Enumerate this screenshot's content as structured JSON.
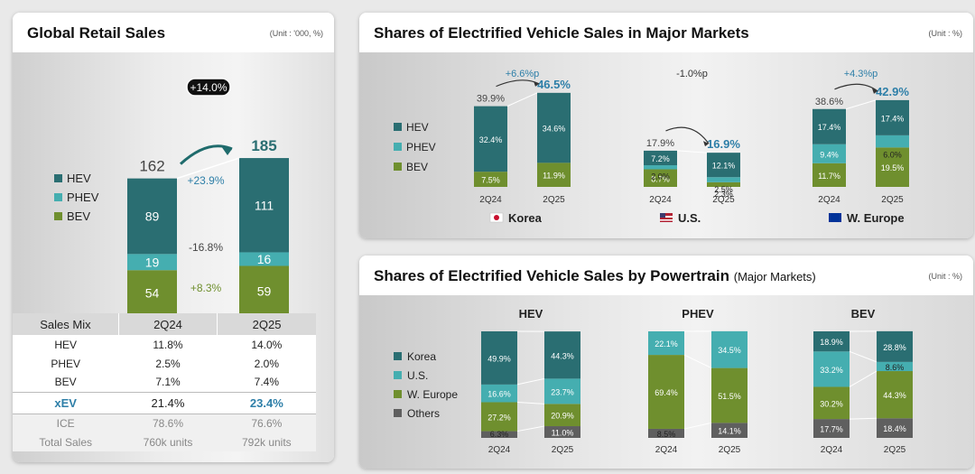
{
  "colors": {
    "hev": "#2a6e72",
    "phev": "#45aeb0",
    "bev": "#6f8f2e",
    "others": "#5f5f5f",
    "accent": "#2e7fa8"
  },
  "left": {
    "title": "Global Retail Sales",
    "unit": "(Unit : '000, %)",
    "badge": "+14.0%",
    "legend": [
      "HEV",
      "PHEV",
      "BEV"
    ],
    "changes": [
      "+23.9%",
      "-16.8%",
      "+8.3%"
    ],
    "table": {
      "headers": [
        "Sales Mix",
        "2Q24",
        "2Q25"
      ],
      "rows": [
        [
          "HEV",
          "11.8%",
          "14.0%"
        ],
        [
          "PHEV",
          "2.5%",
          "2.0%"
        ],
        [
          "BEV",
          "7.1%",
          "7.4%"
        ]
      ],
      "xev": [
        "xEV",
        "21.4%",
        "23.4%"
      ],
      "ice": [
        "ICE",
        "78.6%",
        "76.6%"
      ],
      "total": [
        "Total Sales",
        "760k units",
        "792k units"
      ]
    }
  },
  "top_right": {
    "title": "Shares of Electrified Vehicle Sales in Major Markets",
    "unit": "(Unit : %)"
  },
  "bottom_right": {
    "title": "Shares of Electrified Vehicle Sales by Powertrain",
    "subtitle": "(Major Markets)",
    "unit": "(Unit : %)"
  },
  "chart_data": [
    {
      "type": "bar",
      "stacked": true,
      "categories": [
        "2Q24",
        "2Q25"
      ],
      "series": [
        {
          "name": "BEV",
          "values": [
            54,
            59
          ]
        },
        {
          "name": "PHEV",
          "values": [
            19,
            16
          ]
        },
        {
          "name": "HEV",
          "values": [
            89,
            111
          ]
        }
      ],
      "totals": [
        "162",
        "185"
      ]
    },
    {
      "type": "bar",
      "stacked": true,
      "legend": [
        "HEV",
        "PHEV",
        "BEV"
      ],
      "categories": [
        "2Q24",
        "2Q25"
      ],
      "groups": [
        {
          "name": "Korea",
          "flag": "korea-flag",
          "change": "+6.6%p",
          "totals": [
            "39.9%",
            "46.5%"
          ],
          "bev": [
            7.5,
            11.9
          ],
          "phev": [
            0,
            0
          ],
          "hev": [
            32.4,
            34.6
          ],
          "labels": {
            "bev": [
              "7.5%",
              "11.9%"
            ],
            "phev": [
              "",
              ""
            ],
            "hev": [
              "32.4%",
              "34.6%"
            ]
          }
        },
        {
          "name": "U.S.",
          "flag": "us-flag",
          "change": "-1.0%p",
          "totals": [
            "17.9%",
            "16.9%"
          ],
          "bev": [
            8.7,
            2.3
          ],
          "phev": [
            2.0,
            2.5
          ],
          "hev": [
            7.2,
            12.1
          ],
          "labels": {
            "bev": [
              "8.7%",
              "2.3%"
            ],
            "phev": [
              "2.0%",
              "2.5%"
            ],
            "hev": [
              "7.2%",
              "12.1%"
            ]
          }
        },
        {
          "name": "W. Europe",
          "flag": "eu-flag",
          "change": "+4.3%p",
          "totals": [
            "38.6%",
            "42.9%"
          ],
          "bev": [
            11.7,
            19.5
          ],
          "phev": [
            9.4,
            6.0
          ],
          "hev": [
            17.4,
            17.4
          ],
          "labels": {
            "bev": [
              "11.7%",
              "19.5%"
            ],
            "phev": [
              "9.4%",
              "6.0%"
            ],
            "hev": [
              "17.4%",
              "17.4%"
            ]
          }
        }
      ]
    },
    {
      "type": "bar",
      "stacked": true,
      "percent": true,
      "legend": [
        "Korea",
        "U.S.",
        "W. Europe",
        "Others"
      ],
      "categories": [
        "2Q24",
        "2Q25"
      ],
      "groups": [
        {
          "name": "HEV",
          "others": [
            6.3,
            11.0
          ],
          "weurope": [
            27.2,
            20.9
          ],
          "us": [
            16.6,
            23.7
          ],
          "korea": [
            49.9,
            44.3
          ],
          "labels": {
            "others": [
              "6.3%",
              "11.0%"
            ],
            "weurope": [
              "27.2%",
              "20.9%"
            ],
            "us": [
              "16.6%",
              "23.7%"
            ],
            "korea": [
              "49.9%",
              "44.3%"
            ]
          }
        },
        {
          "name": "PHEV",
          "others": [
            8.5,
            14.1
          ],
          "weurope": [
            69.4,
            51.5
          ],
          "us": [
            22.1,
            34.5
          ],
          "korea": [
            0,
            0
          ],
          "labels": {
            "others": [
              "8.5%",
              "14.1%"
            ],
            "weurope": [
              "69.4%",
              "51.5%"
            ],
            "us": [
              "22.1%",
              "34.5%"
            ],
            "korea": [
              "",
              ""
            ]
          }
        },
        {
          "name": "BEV",
          "others": [
            17.7,
            18.4
          ],
          "weurope": [
            30.2,
            44.3
          ],
          "us": [
            33.2,
            8.6
          ],
          "korea": [
            18.9,
            28.8
          ],
          "labels": {
            "others": [
              "17.7%",
              "18.4%"
            ],
            "weurope": [
              "30.2%",
              "44.3%"
            ],
            "us": [
              "33.2%",
              "8.6%"
            ],
            "korea": [
              "18.9%",
              "28.8%"
            ]
          }
        }
      ]
    }
  ]
}
